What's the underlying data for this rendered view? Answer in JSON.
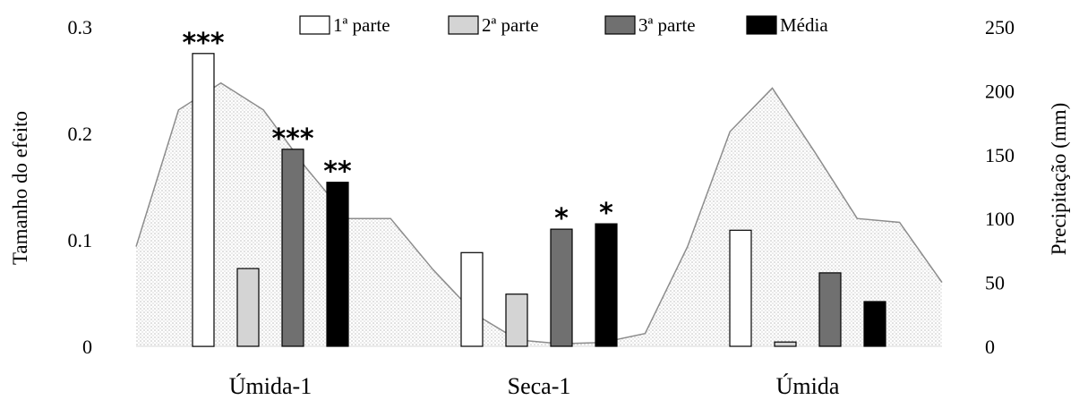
{
  "chart_data": {
    "type": "bar",
    "categories": [
      "Úmida-1",
      "Seca-1",
      "Úmida"
    ],
    "series": [
      {
        "name": "1ª parte",
        "values": [
          0.275,
          0.088,
          0.109
        ],
        "color": "#ffffff"
      },
      {
        "name": "2ª parte",
        "values": [
          0.073,
          0.049,
          0.004
        ],
        "color": "#d4d4d4"
      },
      {
        "name": "3ª parte",
        "values": [
          0.185,
          0.11,
          0.069
        ],
        "color": "#707070"
      },
      {
        "name": "Média",
        "values": [
          0.154,
          0.115,
          0.042
        ],
        "color": "#000000"
      }
    ],
    "significance": [
      [
        "***",
        "",
        "***",
        "**"
      ],
      [
        "",
        "",
        "*",
        "*"
      ],
      [
        "",
        "",
        "",
        ""
      ]
    ],
    "ylabel": "Tamanho  do efeito",
    "ylim": [
      0,
      0.3
    ],
    "yticks": [
      "0",
      "0.1",
      "0.2",
      "0.3"
    ],
    "y2label": "Precipitação (mm)",
    "y2lim": [
      0,
      250
    ],
    "y2ticks": [
      "0",
      "50",
      "100",
      "150",
      "200",
      "250"
    ],
    "precipitation": {
      "type": "area",
      "pattern": "dotted",
      "values": [
        78,
        185,
        206,
        185,
        140,
        100,
        100,
        60,
        25,
        5,
        2,
        3,
        10,
        78,
        168,
        202,
        152,
        100,
        97,
        50
      ]
    },
    "legend_position": "top"
  }
}
